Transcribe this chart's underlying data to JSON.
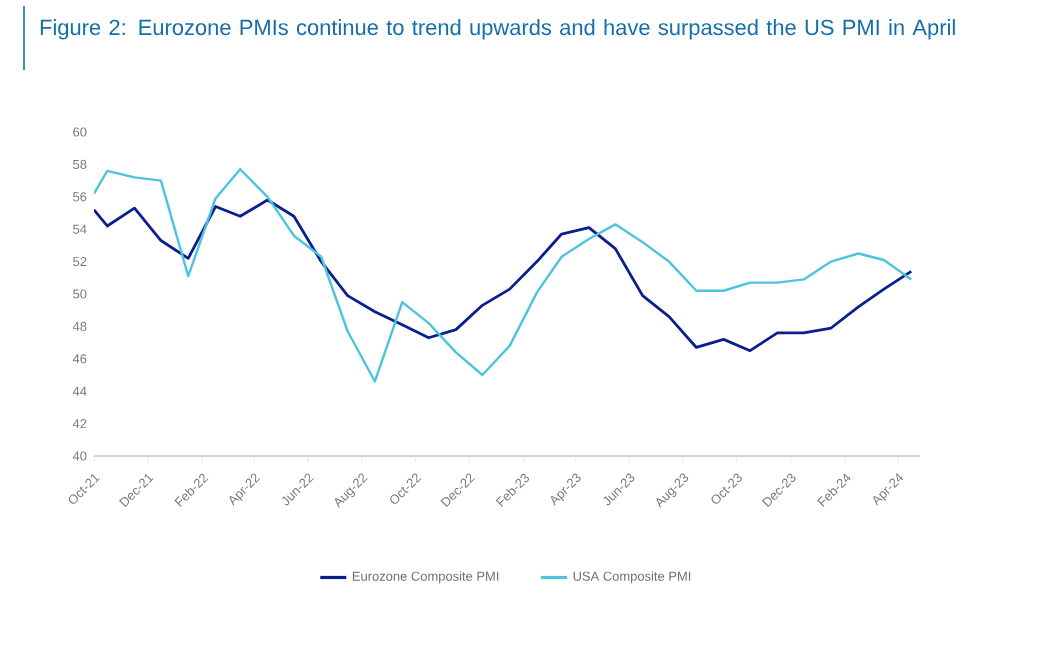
{
  "chart_data": {
    "type": "line",
    "title": "Figure 2: Eurozone PMIs continue to trend upwards and have surpassed the US PMI in April",
    "x": [
      "2021-10-01",
      "2021-10-16",
      "2021-11-16",
      "2021-12-16",
      "2022-01-16",
      "2022-02-16",
      "2022-03-16",
      "2022-04-16",
      "2022-05-16",
      "2022-06-16",
      "2022-07-16",
      "2022-08-16",
      "2022-09-16",
      "2022-10-16",
      "2022-11-16",
      "2022-12-16",
      "2023-01-16",
      "2023-02-16",
      "2023-03-16",
      "2023-04-16",
      "2023-05-16",
      "2023-06-16",
      "2023-07-16",
      "2023-08-16",
      "2023-09-16",
      "2023-10-16",
      "2023-11-16",
      "2023-12-16",
      "2024-01-16",
      "2024-02-16",
      "2024-03-16",
      "2024-04-16"
    ],
    "series": [
      {
        "name": "Eurozone Composite PMI",
        "color": "#0b1f8c",
        "values": [
          55.2,
          54.2,
          55.3,
          53.3,
          52.2,
          55.4,
          54.8,
          55.8,
          54.8,
          52.0,
          49.9,
          48.9,
          48.1,
          47.3,
          47.8,
          49.3,
          50.3,
          52.0,
          53.7,
          54.1,
          52.8,
          49.9,
          48.6,
          46.7,
          47.2,
          46.5,
          47.6,
          47.6,
          47.9,
          49.2,
          50.3,
          51.4
        ]
      },
      {
        "name": "USA Composite PMI",
        "color": "#4cc4dd",
        "values": [
          56.2,
          57.6,
          57.2,
          57.0,
          51.1,
          55.9,
          57.7,
          56.0,
          53.6,
          52.3,
          47.7,
          44.6,
          49.5,
          48.2,
          46.4,
          45.0,
          46.8,
          50.1,
          52.3,
          53.4,
          54.3,
          53.2,
          52.0,
          50.2,
          50.2,
          50.7,
          50.7,
          50.9,
          52.0,
          52.5,
          52.1,
          50.9
        ]
      }
    ],
    "xlim": [
      "2021-10-01",
      "2024-04-26"
    ],
    "xticks": [
      {
        "value": "2021-10-01",
        "label": "Oct-21"
      },
      {
        "value": "2021-12-01",
        "label": "Dec-21"
      },
      {
        "value": "2022-02-01",
        "label": "Feb-22"
      },
      {
        "value": "2022-04-01",
        "label": "Apr-22"
      },
      {
        "value": "2022-06-01",
        "label": "Jun-22"
      },
      {
        "value": "2022-08-01",
        "label": "Aug-22"
      },
      {
        "value": "2022-10-01",
        "label": "Oct-22"
      },
      {
        "value": "2022-12-01",
        "label": "Dec-22"
      },
      {
        "value": "2023-02-01",
        "label": "Feb-23"
      },
      {
        "value": "2023-04-01",
        "label": "Apr-23"
      },
      {
        "value": "2023-06-01",
        "label": "Jun-23"
      },
      {
        "value": "2023-08-01",
        "label": "Aug-23"
      },
      {
        "value": "2023-10-01",
        "label": "Oct-23"
      },
      {
        "value": "2023-12-01",
        "label": "Dec-23"
      },
      {
        "value": "2024-02-01",
        "label": "Feb-24"
      },
      {
        "value": "2024-04-01",
        "label": "Apr-24"
      }
    ],
    "ylim": [
      40,
      60
    ],
    "yticks": [
      40,
      42,
      44,
      46,
      48,
      50,
      52,
      54,
      56,
      58,
      60
    ],
    "legend": "bottom",
    "grid": false,
    "marker": "none",
    "line_style": "solid"
  }
}
